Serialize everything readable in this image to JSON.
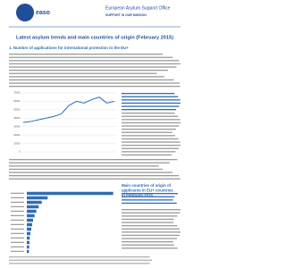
{
  "header": {
    "logo": "easo",
    "org": "European Asylum Support Office",
    "slogan": "SUPPORT IS OUR MISSION"
  },
  "title": "Latest asylum trends and main countries of origin (February 2015)",
  "sections": [
    {
      "heading": "1. Number of applications for international protection in the EU+"
    },
    {
      "heading": "Main countries of origin of applicants in EU+ countries in February 2015"
    }
  ],
  "chart_data": [
    {
      "type": "line",
      "color": "#2e6db4",
      "values": [
        35000,
        36000,
        38000,
        40000,
        42000,
        45000,
        55000,
        60000,
        58000,
        62000,
        65000,
        58000,
        60000
      ],
      "ylim": [
        0,
        70000
      ],
      "yticks": [
        0,
        10000,
        20000,
        30000,
        40000,
        50000,
        60000,
        70000
      ],
      "grid": true
    },
    {
      "type": "hbar",
      "color": "#2e6db4",
      "values": [
        29000,
        7000,
        5000,
        4000,
        3200,
        2600,
        2100,
        1800,
        1500,
        1200,
        1000,
        900,
        800,
        700
      ],
      "xlim": [
        0,
        30000
      ]
    }
  ]
}
